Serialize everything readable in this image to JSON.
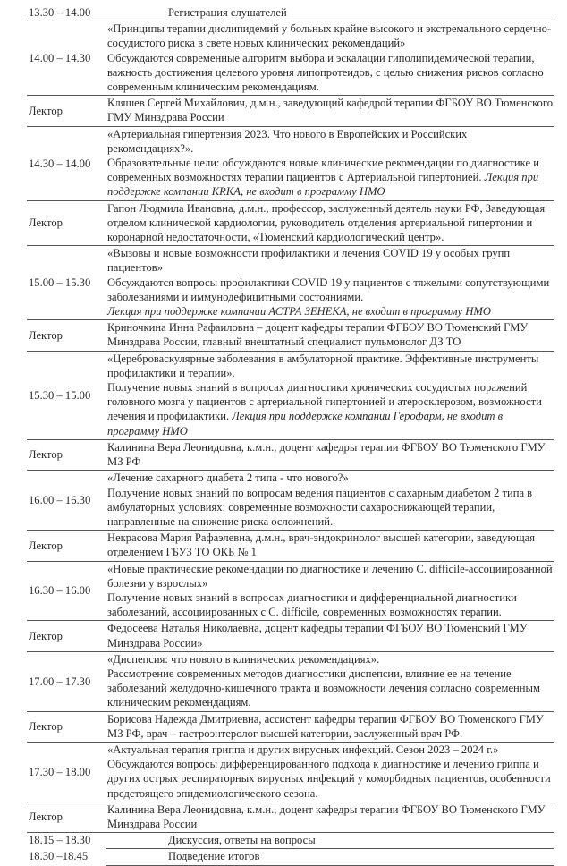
{
  "registration": {
    "time": "13.30 – 14.00",
    "label": "Регистрация слушателей"
  },
  "lector_label": "Лектор",
  "sessions": [
    {
      "time": "14.00 – 14.30",
      "title": "«Принципы терапии дислипидемий у больных крайне высокого и экстремального сердечно-сосудистого риска в свете новых клинических рекомендаций»",
      "desc": "Обсуждаются современные алгоритм выбора и эскалации гиполипидемической терапии, важность достижения целевого уровня липопротеидов, с целью снижения рисков согласно современным клиническим рекомендациям.",
      "note": "",
      "lector": "Кляшев Сергей Михайлович, д.м.н., заведующий кафедрой терапии ФГБОУ ВО Тюменского ГМУ Минздрава России"
    },
    {
      "time": "14.30 – 14.00",
      "title": "«Артериальная гипертензия 2023. Что нового в Европейских и Российских рекомендациях?».",
      "desc": "Образовательные цели: обсуждаются новые клинические рекомендации по диагностике и современных возможностях терапии пациентов с Артериальной гипертонией.",
      "note": "Лекция при поддержке компании KRKA, не входит в программу НМО",
      "lector": "Гапон Людмила Ивановна, д.м.н., профессор, заслуженный деятель науки РФ, Заведующая отделом клинической кардиологии, руководитель отделения артериальной гипертонии и коронарной недостаточности, «Тюменский кардиологический центр»."
    },
    {
      "time": "15.00 – 15.30",
      "title": "«Вызовы и новые возможности профилактики и лечения COVID 19 у особых групп пациентов»",
      "desc": "Обсуждаются вопросы профилактики COVID 19  у пациентов с тяжелыми сопутствующими заболеваниями и иммунодефицитными состояниями.",
      "note": "Лекция при поддержке компании АСТРА ЗЕНЕКА, не входит в программу НМО",
      "note_block": true,
      "lector": "Криночкина Инна Рафаиловна – доцент кафедры терапии ФГБОУ ВО Тюменский ГМУ Минздрава России, главный внештатный специалист пульмонолог ДЗ ТО"
    },
    {
      "time": "15.30 – 15.00",
      "title": "«Цереброваскулярные заболевания в амбулаторной практике. Эффективные инструменты профилактики и терапии».",
      "desc": "Получение новых знаний в вопросах диагностики хронических сосудистых поражений головного мозга у пациентов с артериальной гипертонией и атеросклерозом, возможности лечения и профилактики.",
      "note": "Лекция при поддержке компании Герофарм, не входит в программу НМО",
      "lector": "Калинина Вера Леонидовна, к.м.н., доцент кафедры терапии ФГБОУ ВО Тюменского ГМУ МЗ РФ"
    },
    {
      "time": "16.00 – 16.30",
      "title": "«Лечение сахарного диабета 2 типа - что нового?»",
      "desc": "Получение новых знаний по вопросам ведения пациентов с сахарным диабетом 2 типа в амбулаторных условиях: современные возможности сахароснижающей терапии, направленные на снижение риска осложнений.",
      "note": "",
      "lector": "Некрасова Мария Рафаэлевна, д.м.н., врач-эндокринолог высшей категории, заведующая отделением ГБУЗ ТО ОКБ № 1"
    },
    {
      "time": "16.30 – 16.00",
      "title": "«Новые практические рекомендации по диагностике и лечению C. difficile-ассоциированной болезни у взрослых»",
      "desc": "Получение новых знаний в вопросах диагностики и дифференциальной диагностики заболеваний,  ассоциированных с C. difficile, современных возможностях терапии.",
      "note": "",
      "lector": "Федосеева Наталья Николаевна, доцент кафедры терапии ФГБОУ ВО Тюменский ГМУ Минздрава России»"
    },
    {
      "time": "17.00 – 17.30",
      "title": "«Диспепсия: что нового в клинических рекомендациях».",
      "desc": "Рассмотрение современных методов диагностики диспепсии, влияние ее на течение заболеваний желудочно-кишечного тракта и возможности лечения согласно современным клиническим рекомендациям.",
      "note": "",
      "lector": "Борисова Надежда Дмитриевна, ассистент кафедры терапии ФГБОУ ВО Тюменского ГМУ МЗ РФ, врач – гастроэнтеролог высшей категории, заслуженный врач РФ."
    },
    {
      "time": "17.30 – 18.00",
      "title": "«Актуальная терапия гриппа и других вирусных инфекций. Сезон 2023 – 2024 г.»",
      "desc": "Обсуждаются вопросы дифференцированного подхода к диагностике и лечению гриппа и других острых респираторных вирусных инфекций у коморбидных пациентов, особенности предстоящего эпидемиологического сезона.",
      "note": "",
      "lector": "Калинина Вера Леонидовна, к.м.н., доцент кафедры терапии ФГБОУ ВО Тюменского ГМУ Минздрава России"
    }
  ],
  "closing": [
    {
      "time": "18.15 – 18.30",
      "label": "Дискуссия, ответы на вопросы"
    },
    {
      "time": "18.30 –18.45",
      "label": "Подведение итогов"
    }
  ]
}
